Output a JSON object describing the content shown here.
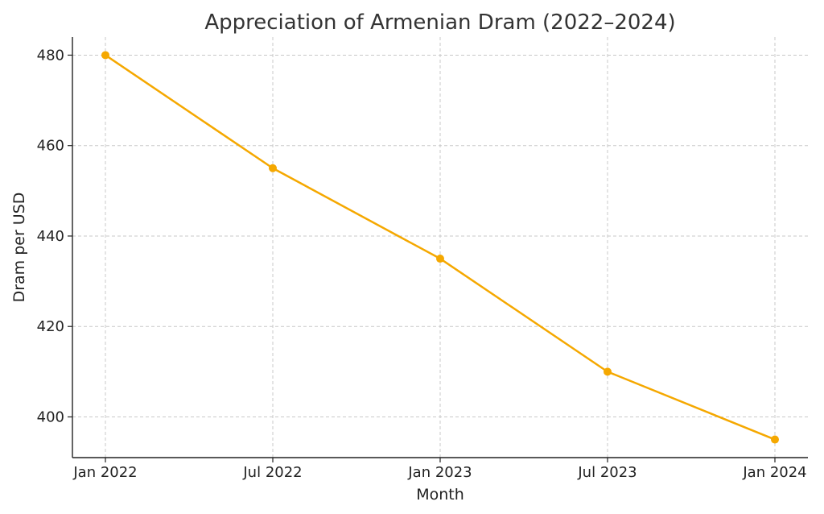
{
  "chart_data": {
    "type": "line",
    "title": "Appreciation of Armenian Dram (2022–2024)",
    "xlabel": "Month",
    "ylabel": "Dram per USD",
    "categories": [
      "Jan 2022",
      "Jul 2022",
      "Jan 2023",
      "Jul 2023",
      "Jan 2024"
    ],
    "series": [
      {
        "values": [
          480,
          455,
          435,
          410,
          395
        ],
        "color": "#f5a800"
      }
    ],
    "yticks": [
      400,
      420,
      440,
      460,
      480
    ],
    "ylim": [
      391,
      484
    ],
    "grid": true,
    "marker": "circle"
  }
}
